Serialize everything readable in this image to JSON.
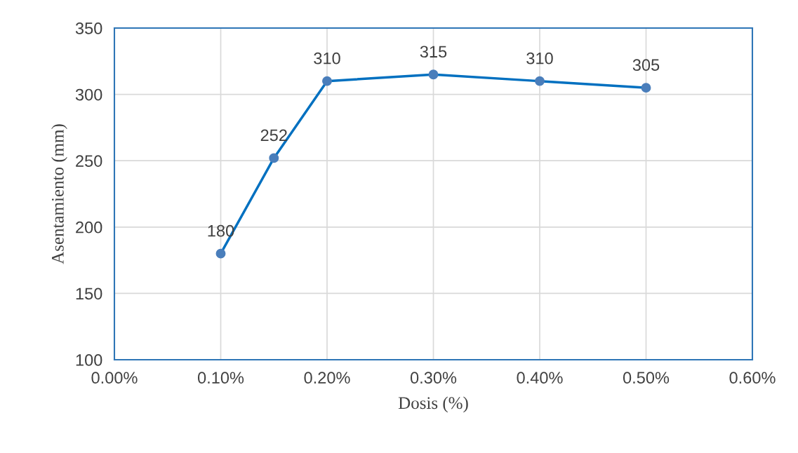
{
  "chart_data": {
    "type": "line",
    "xlabel": "Dosis (%)",
    "ylabel": "Asentamiento (mm)",
    "x": [
      0.1,
      0.15,
      0.2,
      0.3,
      0.4,
      0.5
    ],
    "series": [
      {
        "color": "#0070c0",
        "values": [
          180,
          252,
          310,
          315,
          310,
          305
        ]
      }
    ],
    "xlim": [
      0,
      0.6
    ],
    "xticks": [
      {
        "value": 0,
        "label": "0.00%"
      },
      {
        "value": 0.1,
        "label": "0.10%"
      },
      {
        "value": 0.2,
        "label": "0.20%"
      },
      {
        "value": 0.3,
        "label": "0.30%"
      },
      {
        "value": 0.4,
        "label": "0.40%"
      },
      {
        "value": 0.5,
        "label": "0.50%"
      },
      {
        "value": 0.6,
        "label": "0.60%"
      }
    ],
    "ylim": [
      100,
      350
    ],
    "yticks": [
      100,
      150,
      200,
      250,
      300,
      350
    ],
    "grid": true,
    "marker": "circle",
    "line_style": "solid",
    "data_labels": true,
    "legend": false
  }
}
